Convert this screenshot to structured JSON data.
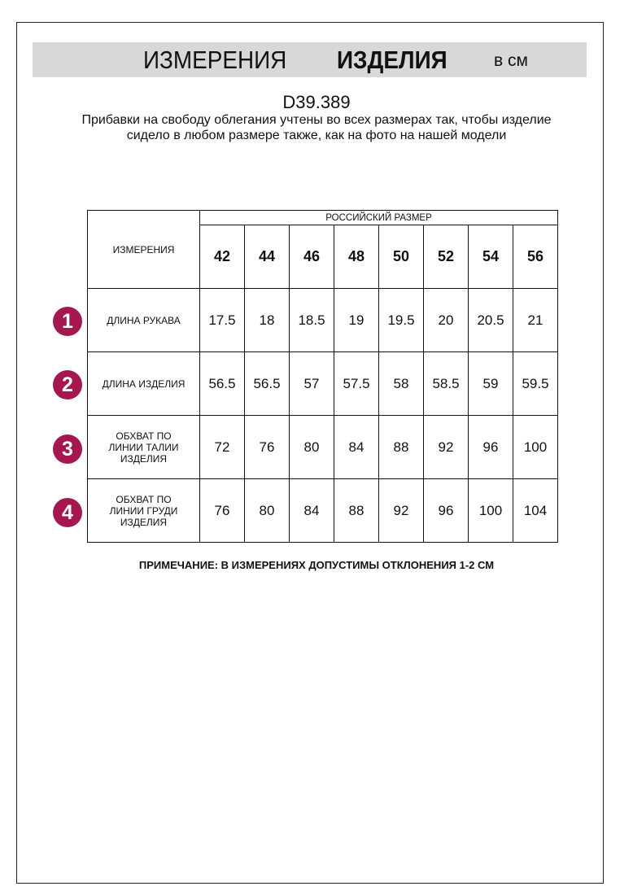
{
  "header": {
    "title_regular": "ИЗМЕРЕНИЯ",
    "title_bold": "ИЗДЕЛИЯ",
    "units": "в см"
  },
  "product_code": "D39.389",
  "description": "Прибавки на свободу облегания учтены во всех размерах так, чтобы изделие сидело в любом размере также, как на фото на нашей модели",
  "table": {
    "corner_label": "ИЗМЕРЕНИЯ",
    "size_group_label": "РОССИЙСКИЙ РАЗМЕР",
    "sizes": [
      "42",
      "44",
      "46",
      "48",
      "50",
      "52",
      "54",
      "56"
    ],
    "rows": [
      {
        "number": "1",
        "label": "ДЛИНА РУКАВА",
        "values": [
          "17.5",
          "18",
          "18.5",
          "19",
          "19.5",
          "20",
          "20.5",
          "21"
        ]
      },
      {
        "number": "2",
        "label": "ДЛИНА ИЗДЕЛИЯ",
        "values": [
          "56.5",
          "56.5",
          "57",
          "57.5",
          "58",
          "58.5",
          "59",
          "59.5"
        ]
      },
      {
        "number": "3",
        "label": "ОБХВАТ ПО ЛИНИИ ТАЛИИ ИЗДЕЛИЯ",
        "values": [
          "72",
          "76",
          "80",
          "84",
          "88",
          "92",
          "96",
          "100"
        ]
      },
      {
        "number": "4",
        "label": "ОБХВАТ ПО ЛИНИИ ГРУДИ ИЗДЕЛИЯ",
        "values": [
          "76",
          "80",
          "84",
          "88",
          "92",
          "96",
          "100",
          "104"
        ]
      }
    ]
  },
  "note": "ПРИМЕЧАНИЕ: В ИЗМЕРЕНИЯХ ДОПУСТИМЫ ОТКЛОНЕНИЯ 1-2 СМ",
  "colors": {
    "accent": "#a5174e",
    "banner": "#d8d8d8"
  }
}
